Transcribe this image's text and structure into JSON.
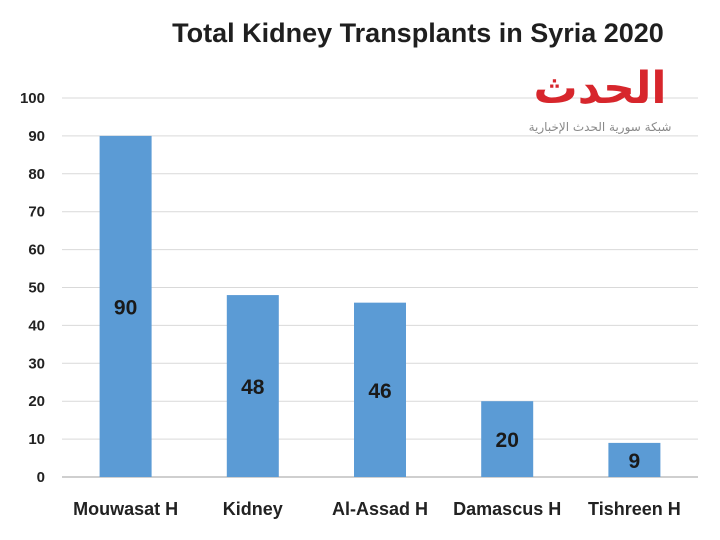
{
  "chart_data": {
    "type": "bar",
    "title": "Total Kidney Transplants in Syria 2020",
    "xlabel": "",
    "ylabel": "",
    "categories": [
      "Mouwasat H",
      "Kidney",
      "Al-Assad H",
      "Damascus H",
      "Tishreen H"
    ],
    "values": [
      90,
      48,
      46,
      20,
      9
    ],
    "data_labels": [
      "90",
      "48",
      "46",
      "20",
      "9"
    ],
    "ylim": [
      0,
      100
    ],
    "yticks": [
      0,
      10,
      20,
      30,
      40,
      50,
      60,
      70,
      80,
      90,
      100
    ],
    "grid": true,
    "legend": "none",
    "colors": {
      "bar": "#5b9bd5",
      "grid": "#d9d9d9",
      "axis": "#bfbfbf"
    }
  },
  "watermark": {
    "logo_text": "الحدث",
    "subtitle": "شبكة سورية الحدث الإخبارية",
    "colors": {
      "logo": "#d7262c",
      "subtitle": "#8a8a8a"
    }
  }
}
